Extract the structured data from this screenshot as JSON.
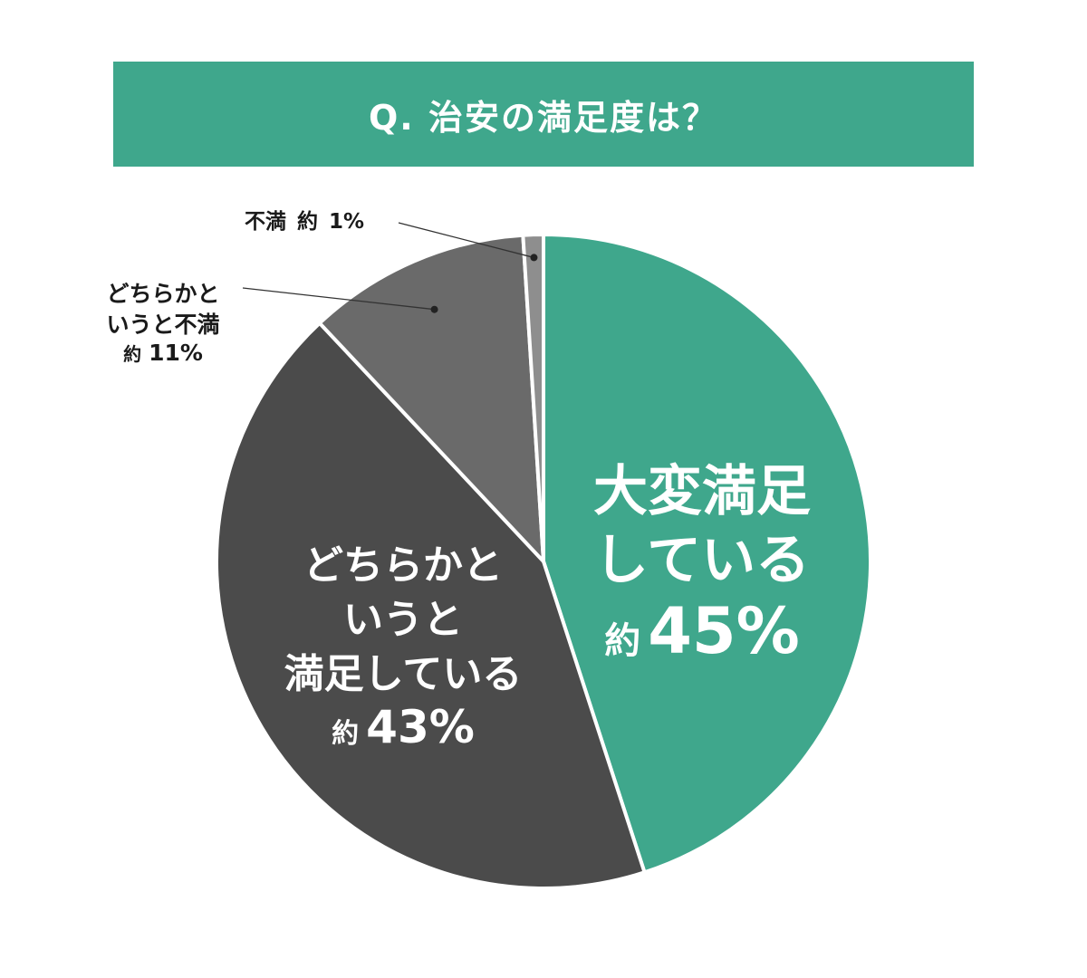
{
  "colors": {
    "banner": "#3fa78c",
    "very_satisfied": "#3fa78c",
    "somewhat_satisfied": "#4b4b4b",
    "somewhat_dissatisfied": "#6a6a6a",
    "dissatisfied": "#8e8e8e",
    "leader": "#333333"
  },
  "chart_data": {
    "type": "pie",
    "title": "Q. 治安の満足度は？",
    "start_angle_deg": 0,
    "direction": "clockwise",
    "legend": "none",
    "slices": [
      {
        "key": "very_satisfied",
        "lines": [
          "大変満足",
          "している"
        ],
        "prefix": "約",
        "value_text": "45%",
        "value": 45
      },
      {
        "key": "somewhat_satisfied",
        "lines": [
          "どちらかと",
          "いうと",
          "満足している"
        ],
        "prefix": "約",
        "value_text": "43%",
        "value": 43
      },
      {
        "key": "somewhat_dissatisfied",
        "lines": [
          "どちらかと",
          "いうと不満"
        ],
        "prefix": "約",
        "value_text": "11%",
        "value": 11
      },
      {
        "key": "dissatisfied",
        "lines": [
          "不満"
        ],
        "prefix": "約",
        "value_text": "1%",
        "value": 1
      }
    ]
  }
}
